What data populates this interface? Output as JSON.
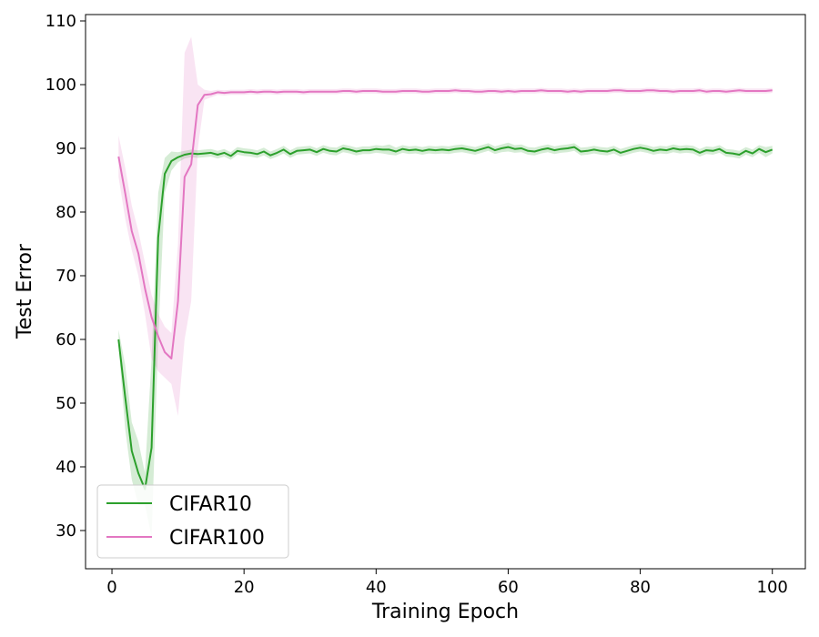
{
  "chart_data": {
    "type": "line",
    "xlabel": "Training Epoch",
    "ylabel": "Test Error",
    "xlim": [
      -4,
      105
    ],
    "ylim": [
      24,
      111
    ],
    "xticks": [
      0,
      20,
      40,
      60,
      80,
      100
    ],
    "yticks": [
      30,
      40,
      50,
      60,
      70,
      80,
      90,
      100,
      110
    ],
    "grid": false,
    "legend_position": "lower-left",
    "series": [
      {
        "name": "CIFAR10",
        "color": "#2ca02c",
        "fill_color": "#2ca02c",
        "x": [
          1,
          2,
          3,
          4,
          5,
          6,
          7,
          8,
          9,
          10,
          11,
          12,
          13,
          14,
          15,
          16,
          17,
          18,
          19,
          20,
          21,
          22,
          23,
          24,
          25,
          26,
          27,
          28,
          29,
          30,
          31,
          32,
          33,
          34,
          35,
          36,
          37,
          38,
          39,
          40,
          41,
          42,
          43,
          44,
          45,
          46,
          47,
          48,
          49,
          50,
          51,
          52,
          53,
          54,
          55,
          56,
          57,
          58,
          59,
          60,
          61,
          62,
          63,
          64,
          65,
          66,
          67,
          68,
          69,
          70,
          71,
          72,
          73,
          74,
          75,
          76,
          77,
          78,
          79,
          80,
          81,
          82,
          83,
          84,
          85,
          86,
          87,
          88,
          89,
          90,
          91,
          92,
          93,
          94,
          95,
          96,
          97,
          98,
          99,
          100
        ],
        "values": [
          60,
          51,
          42.5,
          39,
          36.5,
          43,
          76,
          86,
          88,
          88.6,
          89,
          89.2,
          89.1,
          89.2,
          89.3,
          89,
          89.3,
          88.8,
          89.6,
          89.4,
          89.3,
          89.1,
          89.5,
          88.9,
          89.3,
          89.8,
          89.1,
          89.6,
          89.7,
          89.8,
          89.4,
          89.9,
          89.6,
          89.5,
          90,
          89.8,
          89.5,
          89.7,
          89.7,
          89.9,
          89.8,
          89.8,
          89.5,
          89.9,
          89.7,
          89.8,
          89.6,
          89.8,
          89.7,
          89.8,
          89.7,
          89.9,
          90,
          89.8,
          89.6,
          89.9,
          90.2,
          89.7,
          90,
          90.2,
          89.9,
          90,
          89.6,
          89.5,
          89.8,
          90,
          89.7,
          89.9,
          90,
          90.2,
          89.5,
          89.6,
          89.8,
          89.6,
          89.5,
          89.8,
          89.3,
          89.6,
          89.9,
          90.1,
          89.9,
          89.6,
          89.8,
          89.7,
          90,
          89.8,
          89.9,
          89.8,
          89.3,
          89.7,
          89.6,
          89.9,
          89.3,
          89.2,
          89,
          89.6,
          89.2,
          89.9,
          89.4,
          89.8
        ],
        "lower": [
          59,
          46,
          38,
          34,
          34,
          29,
          60,
          83,
          86.5,
          87.8,
          88.4,
          88.6,
          88.5,
          88.6,
          88.7,
          88.4,
          88.7,
          88.2,
          89,
          88.8,
          88.7,
          88.5,
          88.9,
          88.3,
          88.7,
          89.2,
          88.5,
          89,
          89.1,
          89.2,
          88.8,
          89.3,
          89,
          88.9,
          89.4,
          89.2,
          88.9,
          89.1,
          89.1,
          89.3,
          89.2,
          89,
          88.9,
          89.3,
          89.1,
          89.2,
          89,
          89.2,
          89.1,
          89.2,
          89.1,
          89.3,
          89.4,
          89.2,
          89,
          89.3,
          89.6,
          89.1,
          89.4,
          89.5,
          89.3,
          89.4,
          89,
          88.9,
          89.2,
          89.4,
          89.1,
          89.3,
          89.4,
          89.6,
          88.9,
          89,
          89.2,
          89,
          88.9,
          89.2,
          88.7,
          89,
          89.3,
          89.5,
          89.3,
          89,
          89.2,
          89.1,
          89.4,
          89.2,
          89.3,
          89.2,
          88.7,
          89.1,
          89,
          89.3,
          88.7,
          88.6,
          88.4,
          89,
          88.6,
          89.3,
          88.6,
          89.2
        ],
        "upper": [
          61.5,
          56,
          47,
          44,
          39,
          57,
          83,
          88.5,
          89.5,
          89.4,
          89.6,
          89.8,
          89.7,
          89.8,
          89.9,
          89.6,
          89.9,
          89.4,
          90.2,
          90,
          89.9,
          89.7,
          90.1,
          89.5,
          89.9,
          90.4,
          89.7,
          90.2,
          90.3,
          90.4,
          90,
          90.5,
          90.2,
          90.1,
          90.6,
          90.4,
          90.1,
          90.3,
          90.3,
          90.5,
          90.4,
          90.6,
          90.1,
          90.5,
          90.3,
          90.4,
          90.2,
          90.4,
          90.3,
          90.4,
          90.3,
          90.5,
          90.6,
          90.4,
          90.2,
          90.5,
          90.8,
          90.3,
          90.6,
          90.9,
          90.5,
          90.6,
          90.2,
          90.1,
          90.4,
          90.6,
          90.3,
          90.5,
          90.6,
          90.8,
          90.1,
          90.2,
          90.4,
          90.2,
          90.1,
          90.4,
          89.9,
          90.2,
          90.5,
          90.7,
          90.5,
          90.2,
          90.4,
          90.3,
          90.6,
          90.4,
          90.5,
          90.4,
          89.9,
          90.3,
          90.2,
          90.5,
          89.9,
          89.8,
          89.6,
          90.2,
          89.8,
          90.5,
          90.2,
          90.4
        ]
      },
      {
        "name": "CIFAR100",
        "color": "#e377c2",
        "fill_color": "#e377c2",
        "x": [
          1,
          2,
          3,
          4,
          5,
          6,
          7,
          8,
          9,
          10,
          11,
          12,
          13,
          14,
          15,
          16,
          17,
          18,
          19,
          20,
          21,
          22,
          23,
          24,
          25,
          26,
          27,
          28,
          29,
          30,
          31,
          32,
          33,
          34,
          35,
          36,
          37,
          38,
          39,
          40,
          41,
          42,
          43,
          44,
          45,
          46,
          47,
          48,
          49,
          50,
          51,
          52,
          53,
          54,
          55,
          56,
          57,
          58,
          59,
          60,
          61,
          62,
          63,
          64,
          65,
          66,
          67,
          68,
          69,
          70,
          71,
          72,
          73,
          74,
          75,
          76,
          77,
          78,
          79,
          80,
          81,
          82,
          83,
          84,
          85,
          86,
          87,
          88,
          89,
          90,
          91,
          92,
          93,
          94,
          95,
          96,
          97,
          98,
          99,
          100
        ],
        "values": [
          88.7,
          83,
          77,
          73.5,
          68,
          63.5,
          60.5,
          58,
          57,
          66,
          85.5,
          87.5,
          96.8,
          98.4,
          98.5,
          98.8,
          98.7,
          98.8,
          98.8,
          98.8,
          98.9,
          98.8,
          98.9,
          98.9,
          98.8,
          98.9,
          98.9,
          98.9,
          98.8,
          98.9,
          98.9,
          98.9,
          98.9,
          98.9,
          99,
          99,
          98.9,
          99,
          99,
          99,
          98.9,
          98.9,
          98.9,
          99,
          99,
          99,
          98.9,
          98.9,
          99,
          99,
          99,
          99.1,
          99,
          99,
          98.9,
          98.9,
          99,
          99,
          98.9,
          99,
          98.9,
          99,
          99,
          99,
          99.1,
          99,
          99,
          99,
          98.9,
          99,
          98.9,
          99,
          99,
          99,
          99,
          99.1,
          99.1,
          99,
          99,
          99,
          99.1,
          99.1,
          99,
          99,
          98.9,
          99,
          99,
          99,
          99.1,
          98.9,
          99,
          99,
          98.9,
          99,
          99.1,
          99,
          99,
          99,
          99,
          99.1
        ],
        "lower": [
          85.5,
          79,
          74,
          70,
          64,
          57,
          55,
          54,
          53,
          48,
          60,
          66,
          90,
          97.6,
          98,
          98.4,
          98.3,
          98.4,
          98.4,
          98.4,
          98.5,
          98.4,
          98.5,
          98.5,
          98.4,
          98.5,
          98.5,
          98.5,
          98.4,
          98.5,
          98.5,
          98.5,
          98.5,
          98.5,
          98.6,
          98.6,
          98.5,
          98.6,
          98.6,
          98.6,
          98.5,
          98.5,
          98.5,
          98.6,
          98.6,
          98.6,
          98.5,
          98.5,
          98.6,
          98.6,
          98.6,
          98.7,
          98.6,
          98.6,
          98.5,
          98.5,
          98.6,
          98.6,
          98.5,
          98.6,
          98.5,
          98.6,
          98.6,
          98.6,
          98.7,
          98.6,
          98.6,
          98.6,
          98.5,
          98.6,
          98.5,
          98.6,
          98.6,
          98.6,
          98.6,
          98.7,
          98.7,
          98.6,
          98.6,
          98.6,
          98.7,
          98.7,
          98.6,
          98.6,
          98.5,
          98.6,
          98.6,
          98.6,
          98.7,
          98.5,
          98.6,
          98.6,
          98.5,
          98.6,
          98.7,
          98.6,
          98.6,
          98.6,
          98.6,
          98.7
        ],
        "upper": [
          92,
          87,
          81,
          77,
          72,
          67,
          64,
          62,
          61,
          75,
          105,
          107.5,
          100,
          99.2,
          99,
          99.2,
          99.1,
          99.2,
          99.2,
          99.2,
          99.3,
          99.2,
          99.3,
          99.3,
          99.2,
          99.3,
          99.3,
          99.3,
          99.2,
          99.3,
          99.3,
          99.3,
          99.3,
          99.3,
          99.4,
          99.4,
          99.3,
          99.4,
          99.4,
          99.4,
          99.3,
          99.3,
          99.3,
          99.4,
          99.4,
          99.4,
          99.3,
          99.3,
          99.4,
          99.4,
          99.4,
          99.5,
          99.4,
          99.4,
          99.3,
          99.3,
          99.4,
          99.4,
          99.3,
          99.4,
          99.3,
          99.4,
          99.4,
          99.4,
          99.5,
          99.4,
          99.4,
          99.4,
          99.3,
          99.4,
          99.3,
          99.4,
          99.4,
          99.4,
          99.4,
          99.5,
          99.5,
          99.4,
          99.4,
          99.4,
          99.5,
          99.5,
          99.4,
          99.4,
          99.3,
          99.4,
          99.4,
          99.4,
          99.5,
          99.3,
          99.4,
          99.4,
          99.3,
          99.4,
          99.5,
          99.4,
          99.4,
          99.4,
          99.4,
          99.5
        ]
      }
    ]
  }
}
